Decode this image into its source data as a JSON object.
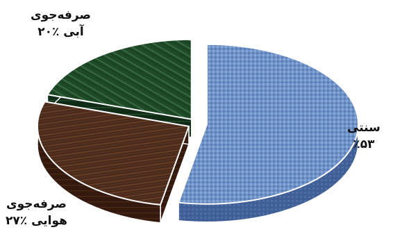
{
  "chart_data": {
    "type": "pie",
    "style": "3d-exploded",
    "slices": [
      {
        "name": "سنتی",
        "value": 53,
        "value_label": "٪۵۳",
        "color": "#6f93c8",
        "texture": "fabric"
      },
      {
        "name": "صرفه‌جوی هوایی",
        "line1": "صرفه‌جوی",
        "line2": "هوایی",
        "value": 27,
        "value_label": "٪۲۷",
        "color": "#4a2b1b",
        "texture": "wood"
      },
      {
        "name": "صرفه‌جوی آبی",
        "line1": "صرفه‌جوی",
        "line2": "آبی",
        "value": 20,
        "value_label": "٪۲۰",
        "color": "#1f4a28",
        "texture": "marble"
      }
    ]
  }
}
